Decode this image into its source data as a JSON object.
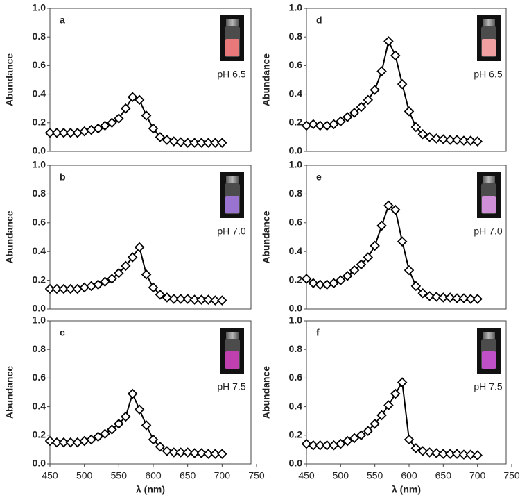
{
  "chart_data": [
    {
      "type": "line",
      "label": "a",
      "annotation": "pH 6.5",
      "ylabel": "Abundance",
      "x": [
        450,
        460,
        470,
        480,
        490,
        500,
        510,
        520,
        530,
        540,
        550,
        560,
        570,
        580,
        590,
        600,
        610,
        620,
        630,
        640,
        650,
        660,
        670,
        680,
        690,
        700
      ],
      "series": [
        {
          "color": "#000000",
          "values": [
            0.13,
            0.13,
            0.13,
            0.13,
            0.13,
            0.14,
            0.15,
            0.16,
            0.18,
            0.2,
            0.23,
            0.3,
            0.38,
            0.36,
            0.25,
            0.16,
            0.1,
            0.08,
            0.07,
            0.065,
            0.06,
            0.06,
            0.06,
            0.06,
            0.06,
            0.06
          ]
        }
      ],
      "xlim": [
        450,
        750
      ],
      "ylim": [
        0,
        1
      ],
      "yticks": [
        {
          "value": 0,
          "label": "0.0"
        },
        {
          "value": 0.2,
          "label": "0.2"
        },
        {
          "value": 0.4,
          "label": "0.4"
        },
        {
          "value": 0.6,
          "label": "0.6"
        },
        {
          "value": 0.8,
          "label": "0.8"
        },
        {
          "value": 1,
          "label": "1.0"
        }
      ]
    },
    {
      "type": "line",
      "label": "b",
      "annotation": "pH 7.0",
      "ylabel": "Abundance",
      "x": [
        450,
        460,
        470,
        480,
        490,
        500,
        510,
        520,
        530,
        540,
        550,
        560,
        570,
        580,
        590,
        600,
        610,
        620,
        630,
        640,
        650,
        660,
        670,
        680,
        690,
        700
      ],
      "series": [
        {
          "color": "#000000",
          "values": [
            0.14,
            0.14,
            0.14,
            0.14,
            0.14,
            0.15,
            0.16,
            0.17,
            0.19,
            0.21,
            0.25,
            0.3,
            0.36,
            0.43,
            0.24,
            0.15,
            0.1,
            0.08,
            0.07,
            0.07,
            0.07,
            0.065,
            0.065,
            0.065,
            0.06,
            0.06
          ]
        }
      ],
      "xlim": [
        450,
        750
      ],
      "ylim": [
        0,
        1
      ],
      "yticks": [
        {
          "value": 0,
          "label": "0.0"
        },
        {
          "value": 0.2,
          "label": "0.2"
        },
        {
          "value": 0.4,
          "label": "0.4"
        },
        {
          "value": 0.6,
          "label": "0.6"
        },
        {
          "value": 0.8,
          "label": "0.8"
        },
        {
          "value": 1,
          "label": "1.0"
        }
      ]
    },
    {
      "type": "line",
      "label": "c",
      "annotation": "pH 7.5",
      "ylabel": "Abundance",
      "xlabel": "λ (nm)",
      "x": [
        450,
        460,
        470,
        480,
        490,
        500,
        510,
        520,
        530,
        540,
        550,
        560,
        570,
        580,
        590,
        600,
        610,
        620,
        630,
        640,
        650,
        660,
        670,
        680,
        690,
        700
      ],
      "series": [
        {
          "color": "#000000",
          "values": [
            0.16,
            0.15,
            0.15,
            0.15,
            0.15,
            0.16,
            0.17,
            0.19,
            0.21,
            0.24,
            0.28,
            0.33,
            0.49,
            0.38,
            0.27,
            0.17,
            0.12,
            0.09,
            0.08,
            0.08,
            0.08,
            0.075,
            0.075,
            0.07,
            0.07,
            0.07
          ]
        }
      ],
      "xlim": [
        450,
        750
      ],
      "xticks": [
        450,
        500,
        550,
        600,
        650,
        700,
        750
      ],
      "ylim": [
        0,
        1
      ],
      "yticks": [
        {
          "value": 0,
          "label": "0.0"
        },
        {
          "value": 0.2,
          "label": "0.2"
        },
        {
          "value": 0.4,
          "label": "0.4"
        },
        {
          "value": 0.6,
          "label": "0.6"
        },
        {
          "value": 0.8,
          "label": "0.8"
        },
        {
          "value": 1,
          "label": "1.0"
        }
      ]
    },
    {
      "type": "line",
      "label": "d",
      "annotation": "pH 6.5",
      "ylabel": "Abundance",
      "x": [
        450,
        460,
        470,
        480,
        490,
        500,
        510,
        520,
        530,
        540,
        550,
        560,
        570,
        580,
        590,
        600,
        610,
        620,
        630,
        640,
        650,
        660,
        670,
        680,
        690,
        700
      ],
      "series": [
        {
          "color": "#000000",
          "values": [
            0.18,
            0.19,
            0.18,
            0.18,
            0.19,
            0.21,
            0.24,
            0.27,
            0.31,
            0.36,
            0.43,
            0.56,
            0.77,
            0.67,
            0.47,
            0.28,
            0.17,
            0.12,
            0.1,
            0.09,
            0.085,
            0.08,
            0.08,
            0.075,
            0.075,
            0.07
          ]
        }
      ],
      "xlim": [
        450,
        750
      ],
      "ylim": [
        0,
        1
      ],
      "yticks": [
        {
          "value": 0,
          "label": "0.0"
        },
        {
          "value": 0.2,
          "label": "0.2"
        },
        {
          "value": 0.4,
          "label": "0.4"
        },
        {
          "value": 0.6,
          "label": "0.6"
        },
        {
          "value": 0.8,
          "label": "0.8"
        },
        {
          "value": 1,
          "label": "1.0"
        }
      ]
    },
    {
      "type": "line",
      "label": "e",
      "annotation": "pH 7.0",
      "ylabel": "Abundance",
      "x": [
        450,
        460,
        470,
        480,
        490,
        500,
        510,
        520,
        530,
        540,
        550,
        560,
        570,
        580,
        590,
        600,
        610,
        620,
        630,
        640,
        650,
        660,
        670,
        680,
        690,
        700
      ],
      "series": [
        {
          "color": "#000000",
          "values": [
            0.21,
            0.18,
            0.17,
            0.17,
            0.18,
            0.2,
            0.23,
            0.27,
            0.31,
            0.36,
            0.44,
            0.58,
            0.72,
            0.69,
            0.47,
            0.27,
            0.16,
            0.11,
            0.09,
            0.085,
            0.08,
            0.08,
            0.075,
            0.075,
            0.07,
            0.07
          ]
        }
      ],
      "xlim": [
        450,
        750
      ],
      "ylim": [
        0,
        1
      ],
      "yticks": [
        {
          "value": 0,
          "label": "0.0"
        },
        {
          "value": 0.2,
          "label": "0.2"
        },
        {
          "value": 0.4,
          "label": "0.4"
        },
        {
          "value": 0.6,
          "label": "0.6"
        },
        {
          "value": 0.8,
          "label": "0.8"
        },
        {
          "value": 1,
          "label": "1.0"
        }
      ]
    },
    {
      "type": "line",
      "label": "f",
      "annotation": "pH 7.5",
      "ylabel": "Abundance",
      "xlabel": "λ (nm)",
      "x": [
        450,
        460,
        470,
        480,
        490,
        500,
        510,
        520,
        530,
        540,
        550,
        560,
        570,
        580,
        590,
        600,
        610,
        620,
        630,
        640,
        650,
        660,
        670,
        680,
        690,
        700
      ],
      "series": [
        {
          "color": "#000000",
          "values": [
            0.14,
            0.13,
            0.13,
            0.13,
            0.13,
            0.14,
            0.16,
            0.18,
            0.2,
            0.23,
            0.28,
            0.34,
            0.41,
            0.49,
            0.57,
            0.17,
            0.11,
            0.09,
            0.08,
            0.075,
            0.07,
            0.07,
            0.07,
            0.065,
            0.065,
            0.06
          ]
        }
      ],
      "xlim": [
        450,
        750
      ],
      "xticks": [
        450,
        500,
        550,
        600,
        650,
        700,
        750
      ],
      "ylim": [
        0,
        1
      ],
      "yticks": [
        {
          "value": 0,
          "label": "0.0"
        },
        {
          "value": 0.2,
          "label": "0.2"
        },
        {
          "value": 0.4,
          "label": "0.4"
        },
        {
          "value": 0.6,
          "label": "0.6"
        },
        {
          "value": 0.8,
          "label": "0.8"
        },
        {
          "value": 1,
          "label": "1.0"
        }
      ]
    }
  ]
}
